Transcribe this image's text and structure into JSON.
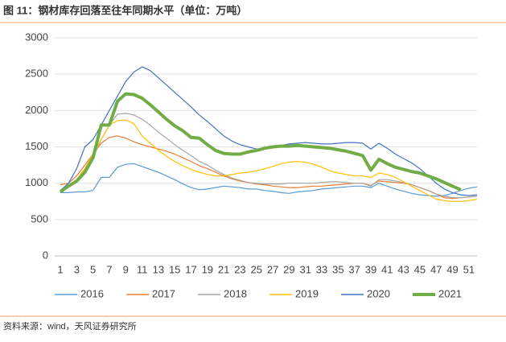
{
  "chart_data": {
    "type": "line",
    "title": "图 11：钢材库存回落至往年同期水平（单位：万吨）",
    "source": "资料来源：wind，天风证券研究所",
    "x": [
      1,
      2,
      3,
      4,
      5,
      6,
      7,
      8,
      9,
      10,
      11,
      12,
      13,
      14,
      15,
      16,
      17,
      18,
      19,
      20,
      21,
      22,
      23,
      24,
      25,
      26,
      27,
      28,
      29,
      30,
      31,
      32,
      33,
      34,
      35,
      36,
      37,
      38,
      39,
      40,
      41,
      42,
      43,
      44,
      45,
      46,
      47,
      48,
      49,
      50,
      51,
      52
    ],
    "xlim": [
      1,
      52
    ],
    "xticks": [
      1,
      3,
      5,
      7,
      9,
      11,
      13,
      15,
      17,
      19,
      21,
      23,
      25,
      27,
      29,
      31,
      33,
      35,
      37,
      39,
      41,
      43,
      45,
      47,
      49,
      51
    ],
    "ylim": [
      0,
      3000
    ],
    "yticks": [
      0,
      500,
      1000,
      1500,
      2000,
      2500,
      3000
    ],
    "grid": true,
    "legend": "bottom",
    "series": [
      {
        "name": "2016",
        "color": "#5b9bd5",
        "values": [
          870,
          870,
          880,
          880,
          900,
          1080,
          1080,
          1220,
          1260,
          1270,
          1230,
          1190,
          1150,
          1100,
          1050,
          990,
          940,
          910,
          920,
          940,
          960,
          950,
          940,
          920,
          920,
          900,
          890,
          870,
          860,
          880,
          890,
          900,
          920,
          930,
          940,
          950,
          960,
          960,
          940,
          1000,
          960,
          920,
          890,
          860,
          840,
          830,
          820,
          830,
          860,
          900,
          930,
          950
        ]
      },
      {
        "name": "2017",
        "color": "#ed7d31",
        "values": [
          980,
          1000,
          1100,
          1250,
          1400,
          1550,
          1630,
          1650,
          1620,
          1570,
          1530,
          1500,
          1470,
          1440,
          1400,
          1350,
          1300,
          1240,
          1200,
          1150,
          1100,
          1060,
          1030,
          1010,
          990,
          980,
          960,
          950,
          940,
          940,
          950,
          960,
          960,
          970,
          980,
          990,
          1000,
          1000,
          970,
          1030,
          1020,
          1010,
          1000,
          980,
          940,
          900,
          850,
          800,
          790,
          800,
          810,
          820
        ]
      },
      {
        "name": "2018",
        "color": "#a5a5a5",
        "values": [
          900,
          950,
          1050,
          1200,
          1350,
          1600,
          1800,
          1950,
          1960,
          1940,
          1880,
          1800,
          1700,
          1620,
          1530,
          1450,
          1380,
          1300,
          1250,
          1180,
          1120,
          1070,
          1040,
          1010,
          1000,
          990,
          990,
          990,
          1000,
          1000,
          1000,
          1000,
          1010,
          1020,
          1020,
          1010,
          1000,
          1000,
          960,
          1050,
          1050,
          1030,
          1010,
          980,
          940,
          900,
          850,
          820,
          800,
          800,
          810,
          820
        ]
      },
      {
        "name": "2019",
        "color": "#ffc000",
        "values": [
          880,
          950,
          1050,
          1200,
          1400,
          1600,
          1800,
          1860,
          1870,
          1820,
          1650,
          1550,
          1450,
          1370,
          1300,
          1240,
          1190,
          1150,
          1120,
          1100,
          1100,
          1120,
          1140,
          1150,
          1170,
          1200,
          1230,
          1270,
          1290,
          1300,
          1290,
          1260,
          1220,
          1170,
          1140,
          1120,
          1100,
          1100,
          1080,
          1140,
          1120,
          1080,
          1020,
          960,
          900,
          840,
          780,
          760,
          750,
          750,
          760,
          780
        ]
      },
      {
        "name": "2020",
        "color": "#4472c4",
        "values": [
          900,
          1000,
          1200,
          1500,
          1600,
          1800,
          2000,
          2200,
          2400,
          2530,
          2600,
          2550,
          2450,
          2350,
          2250,
          2150,
          2050,
          1940,
          1850,
          1750,
          1650,
          1580,
          1530,
          1500,
          1470,
          1480,
          1500,
          1520,
          1540,
          1550,
          1560,
          1550,
          1540,
          1540,
          1550,
          1560,
          1560,
          1550,
          1470,
          1550,
          1480,
          1400,
          1340,
          1280,
          1200,
          1100,
          1000,
          920,
          870,
          840,
          830,
          840
        ]
      },
      {
        "name": "2021",
        "color": "#70ad47",
        "values": [
          880,
          960,
          1030,
          1150,
          1350,
          1800,
          1800,
          2130,
          2230,
          2220,
          2170,
          2080,
          1980,
          1880,
          1790,
          1720,
          1630,
          1620,
          1530,
          1450,
          1410,
          1400,
          1400,
          1430,
          1450,
          1480,
          1500,
          1510,
          1510,
          1520,
          1510,
          1500,
          1490,
          1480,
          1460,
          1440,
          1410,
          1380,
          1180,
          1330,
          1270,
          1220,
          1190,
          1160,
          1140,
          1100,
          1060,
          1010,
          960,
          910,
          null,
          null
        ]
      }
    ]
  }
}
